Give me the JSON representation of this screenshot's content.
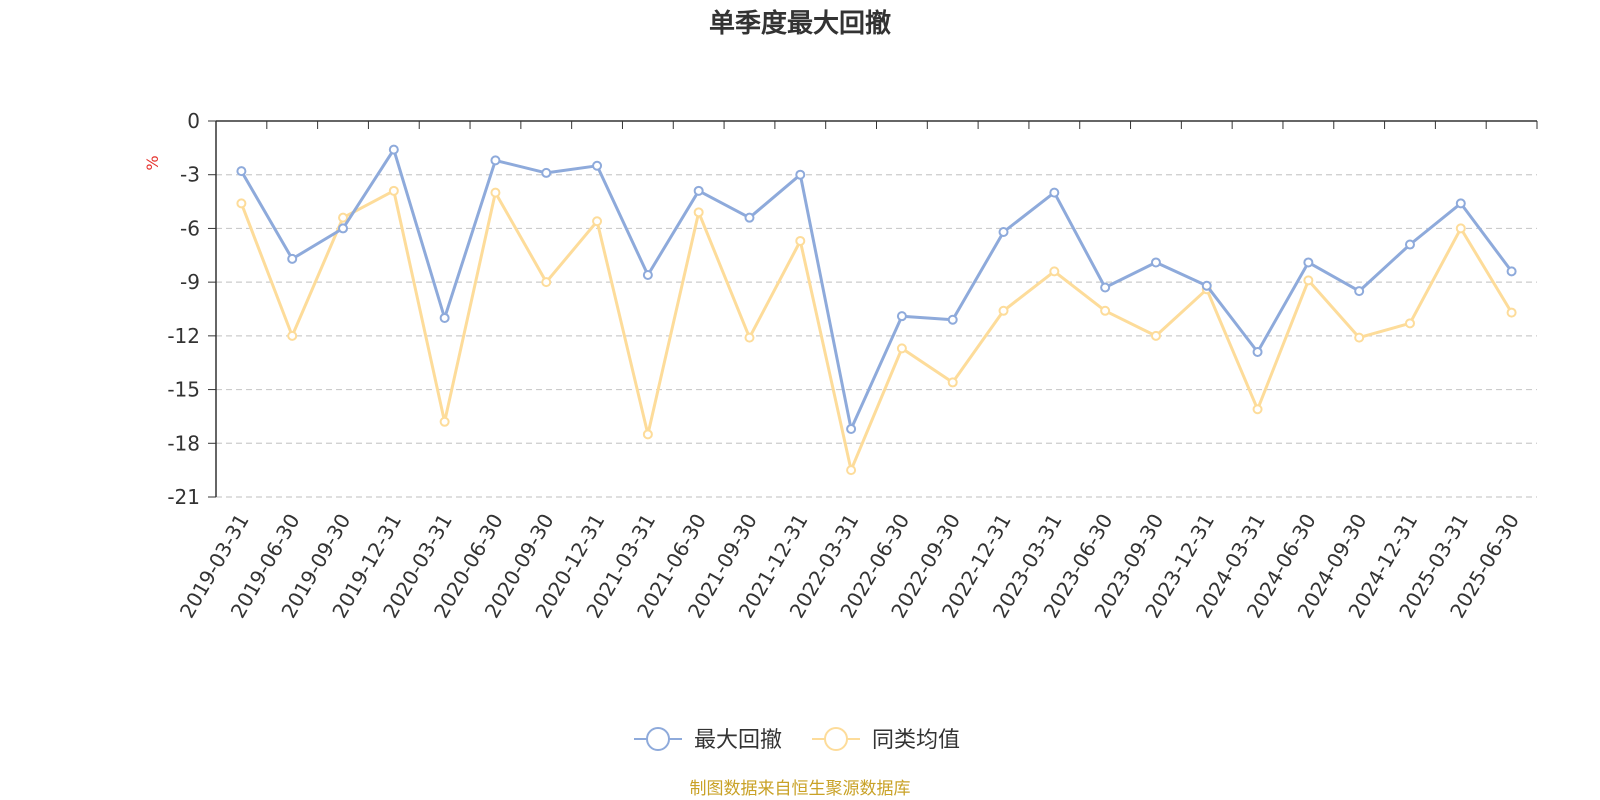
{
  "chart_data": {
    "type": "line",
    "title": "单季度最大回撤",
    "ylabel": "%",
    "ylim": [
      -21,
      0
    ],
    "yticks": [
      0,
      -3,
      -6,
      -9,
      -12,
      -15,
      -18,
      -21
    ],
    "grid": true,
    "legend_position": "bottom",
    "categories": [
      "2019-03-31",
      "2019-06-30",
      "2019-09-30",
      "2019-12-31",
      "2020-03-31",
      "2020-06-30",
      "2020-09-30",
      "2020-12-31",
      "2021-03-31",
      "2021-06-30",
      "2021-09-30",
      "2021-12-31",
      "2022-03-31",
      "2022-06-30",
      "2022-09-30",
      "2022-12-31",
      "2023-03-31",
      "2023-06-30",
      "2023-09-30",
      "2023-12-31",
      "2024-03-31",
      "2024-06-30",
      "2024-09-30",
      "2024-12-31",
      "2025-03-31",
      "2025-06-30"
    ],
    "series": [
      {
        "name": "最大回撤",
        "color": "#8eaadb",
        "values": [
          -2.8,
          -7.7,
          -6.0,
          -1.6,
          -11.0,
          -2.2,
          -2.9,
          -2.5,
          -8.6,
          -3.9,
          -5.4,
          -3.0,
          -17.2,
          -10.9,
          -11.1,
          -6.2,
          -4.0,
          -9.3,
          -7.9,
          -9.2,
          -12.9,
          -7.9,
          -9.5,
          -6.9,
          -4.6,
          -8.4
        ]
      },
      {
        "name": "同类均值",
        "color": "#fddc9a",
        "values": [
          -4.6,
          -12.0,
          -5.4,
          -3.9,
          -16.8,
          -4.0,
          -9.0,
          -5.6,
          -17.5,
          -5.1,
          -12.1,
          -6.7,
          -19.5,
          -12.7,
          -14.6,
          -10.6,
          -8.4,
          -10.6,
          -12.0,
          -9.4,
          -16.1,
          -8.9,
          -12.1,
          -11.3,
          -6.0,
          -10.7
        ]
      }
    ]
  },
  "footer": "制图数据来自恒生聚源数据库"
}
